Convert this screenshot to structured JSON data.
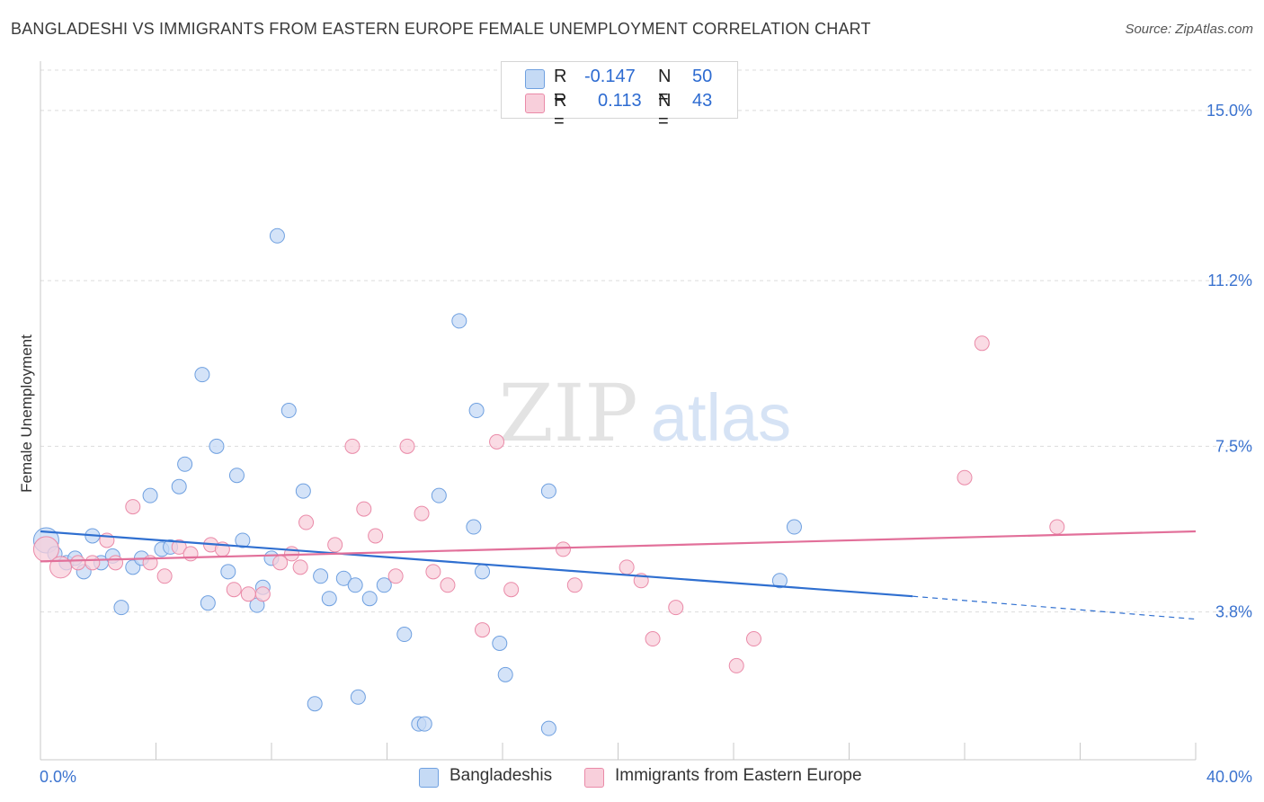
{
  "header": {
    "title": "BANGLADESHI VS IMMIGRANTS FROM EASTERN EUROPE FEMALE UNEMPLOYMENT CORRELATION CHART",
    "source": "Source: ZipAtlas.com"
  },
  "watermark": {
    "zip": "ZIP",
    "atlas": "atlas"
  },
  "legend_top": {
    "rows": [
      {
        "r_label": "R =",
        "r_value": "-0.147",
        "n_label": "N =",
        "n_value": "50",
        "color": "#a9c8f0"
      },
      {
        "r_label": "R =",
        "r_value": "0.113",
        "n_label": "N =",
        "n_value": "43",
        "color": "#f5b8ca"
      }
    ]
  },
  "legend_bottom": {
    "items": [
      {
        "label": "Bangladeshis",
        "color": "#a9c8f0"
      },
      {
        "label": "Immigrants from Eastern Europe",
        "color": "#f5b8ca"
      }
    ]
  },
  "chart_data": {
    "type": "scatter",
    "ylabel": "Female Unemployment",
    "xlim": [
      0,
      40
    ],
    "ylim": [
      0.5,
      15.9
    ],
    "x_tick_labels": {
      "left": "0.0%",
      "right": "40.0%"
    },
    "y_ticks": [
      {
        "value": 3.8,
        "label": "3.8%"
      },
      {
        "value": 7.5,
        "label": "7.5%"
      },
      {
        "value": 11.2,
        "label": "11.2%"
      },
      {
        "value": 15.0,
        "label": "15.0%"
      }
    ],
    "grid": "horizontal dashed",
    "series": [
      {
        "name": "Bangladeshis",
        "color": "#6fa0e0",
        "fill": "#c5daf5",
        "trend": {
          "x0": 0,
          "y0": 5.6,
          "x1": 30.2,
          "y1": 4.15,
          "dash_x1": 40,
          "dash_y1": 3.64
        },
        "points": [
          [
            0.2,
            5.4,
            14
          ],
          [
            0.5,
            5.1,
            8
          ],
          [
            0.9,
            4.9,
            8
          ],
          [
            1.2,
            5.0,
            8
          ],
          [
            1.5,
            4.7,
            8
          ],
          [
            1.8,
            5.5,
            8
          ],
          [
            2.1,
            4.9,
            8
          ],
          [
            2.5,
            5.05,
            8
          ],
          [
            2.8,
            3.9,
            8
          ],
          [
            3.2,
            4.8,
            8
          ],
          [
            3.5,
            5.0,
            8
          ],
          [
            3.8,
            6.4,
            8
          ],
          [
            4.2,
            5.2,
            8
          ],
          [
            4.5,
            5.25,
            8
          ],
          [
            4.8,
            6.6,
            8
          ],
          [
            5.0,
            7.1,
            8
          ],
          [
            5.6,
            9.1,
            8
          ],
          [
            5.8,
            4.0,
            8
          ],
          [
            6.1,
            7.5,
            8
          ],
          [
            6.5,
            4.7,
            8
          ],
          [
            6.8,
            6.85,
            8
          ],
          [
            7.0,
            5.4,
            8
          ],
          [
            7.5,
            3.95,
            8
          ],
          [
            7.7,
            4.35,
            8
          ],
          [
            8.0,
            5.0,
            8
          ],
          [
            8.2,
            12.2,
            8
          ],
          [
            8.6,
            8.3,
            8
          ],
          [
            9.1,
            6.5,
            8
          ],
          [
            9.5,
            1.75,
            8
          ],
          [
            9.7,
            4.6,
            8
          ],
          [
            10.0,
            4.1,
            8
          ],
          [
            10.5,
            4.55,
            8
          ],
          [
            10.9,
            4.4,
            8
          ],
          [
            11.0,
            1.9,
            8
          ],
          [
            11.4,
            4.1,
            8
          ],
          [
            11.9,
            4.4,
            8
          ],
          [
            12.6,
            3.3,
            8
          ],
          [
            13.1,
            1.3,
            8
          ],
          [
            13.3,
            1.3,
            8
          ],
          [
            13.8,
            6.4,
            8
          ],
          [
            14.5,
            10.3,
            8
          ],
          [
            15.0,
            5.7,
            8
          ],
          [
            15.1,
            8.3,
            8
          ],
          [
            15.3,
            4.7,
            8
          ],
          [
            15.9,
            3.1,
            8
          ],
          [
            16.1,
            2.4,
            8
          ],
          [
            17.6,
            6.5,
            8
          ],
          [
            17.6,
            1.2,
            8
          ],
          [
            25.6,
            4.5,
            8
          ],
          [
            26.1,
            5.7,
            8
          ]
        ]
      },
      {
        "name": "Immigrants from Eastern Europe",
        "color": "#ea8aa8",
        "fill": "#f8cfdb",
        "trend": {
          "x0": 0,
          "y0": 4.93,
          "x1": 40,
          "y1": 5.6
        },
        "points": [
          [
            0.2,
            5.2,
            14
          ],
          [
            0.7,
            4.8,
            12
          ],
          [
            1.3,
            4.9,
            8
          ],
          [
            1.8,
            4.9,
            8
          ],
          [
            2.3,
            5.4,
            8
          ],
          [
            2.6,
            4.9,
            8
          ],
          [
            3.2,
            6.15,
            8
          ],
          [
            3.8,
            4.9,
            8
          ],
          [
            4.3,
            4.6,
            8
          ],
          [
            4.8,
            5.25,
            8
          ],
          [
            5.2,
            5.1,
            8
          ],
          [
            5.9,
            5.3,
            8
          ],
          [
            6.3,
            5.2,
            8
          ],
          [
            6.7,
            4.3,
            8
          ],
          [
            7.2,
            4.2,
            8
          ],
          [
            7.7,
            4.2,
            8
          ],
          [
            8.3,
            4.9,
            8
          ],
          [
            8.7,
            5.1,
            8
          ],
          [
            9.0,
            4.8,
            8
          ],
          [
            9.2,
            5.8,
            8
          ],
          [
            10.2,
            5.3,
            8
          ],
          [
            10.8,
            7.5,
            8
          ],
          [
            11.2,
            6.1,
            8
          ],
          [
            11.6,
            5.5,
            8
          ],
          [
            12.3,
            4.6,
            8
          ],
          [
            12.7,
            7.5,
            8
          ],
          [
            13.2,
            6.0,
            8
          ],
          [
            13.6,
            4.7,
            8
          ],
          [
            14.1,
            4.4,
            8
          ],
          [
            15.3,
            3.4,
            8
          ],
          [
            15.8,
            7.6,
            8
          ],
          [
            16.3,
            4.3,
            8
          ],
          [
            18.1,
            5.2,
            8
          ],
          [
            18.5,
            4.4,
            8
          ],
          [
            20.3,
            4.8,
            8
          ],
          [
            20.8,
            4.5,
            8
          ],
          [
            21.2,
            3.2,
            8
          ],
          [
            22.0,
            3.9,
            8
          ],
          [
            24.1,
            2.6,
            8
          ],
          [
            24.7,
            3.2,
            8
          ],
          [
            32.0,
            6.8,
            8
          ],
          [
            32.6,
            9.8,
            8
          ],
          [
            35.2,
            5.7,
            8
          ]
        ]
      }
    ]
  }
}
